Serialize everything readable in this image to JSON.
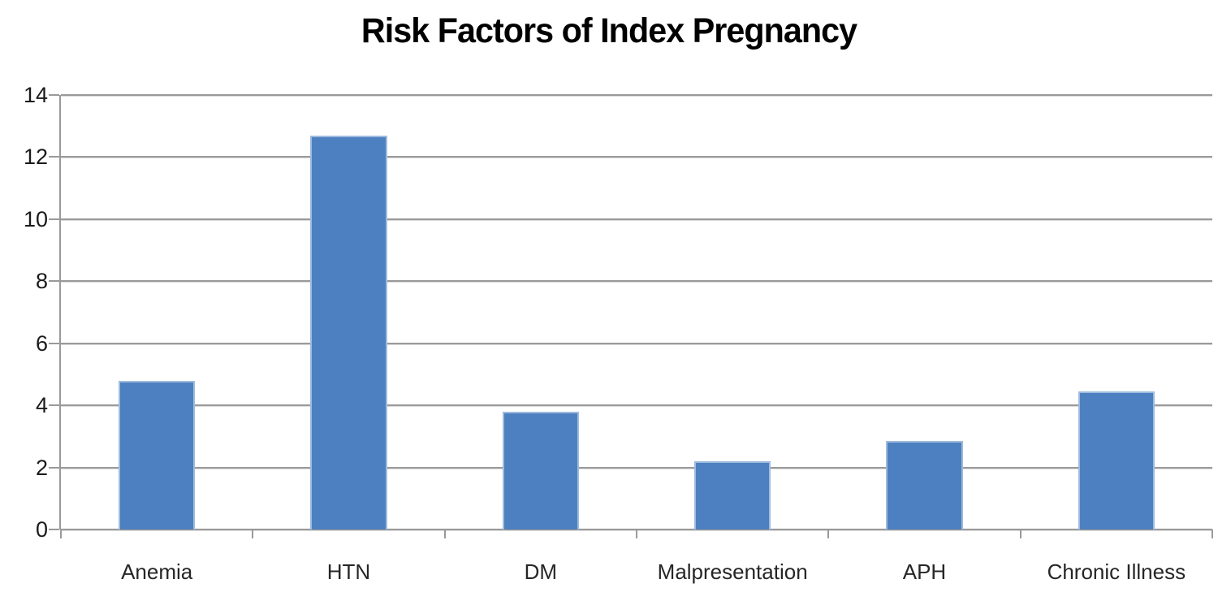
{
  "chart_data": {
    "type": "bar",
    "title": "Risk Factors of Index Pregnancy",
    "categories": [
      "Anemia",
      "HTN",
      "DM",
      "Malpresentation",
      "APH",
      "Chronic Illness"
    ],
    "values": [
      4.8,
      12.7,
      3.8,
      2.2,
      2.85,
      4.45
    ],
    "xlabel": "",
    "ylabel": "",
    "ylim": [
      0,
      14
    ],
    "yticks": [
      0,
      2,
      4,
      6,
      8,
      10,
      12,
      14
    ],
    "grid": "horizontal",
    "legend": "none",
    "colors": {
      "bar_fill": "#4d80c1",
      "bar_border": "#9fbbdd",
      "gridline": "#9a9a9a",
      "axis": "#9a9a9a",
      "tick_text": "#1a1a1a",
      "category_text": "#262626",
      "title_text": "#000000",
      "background": "#ffffff"
    }
  }
}
